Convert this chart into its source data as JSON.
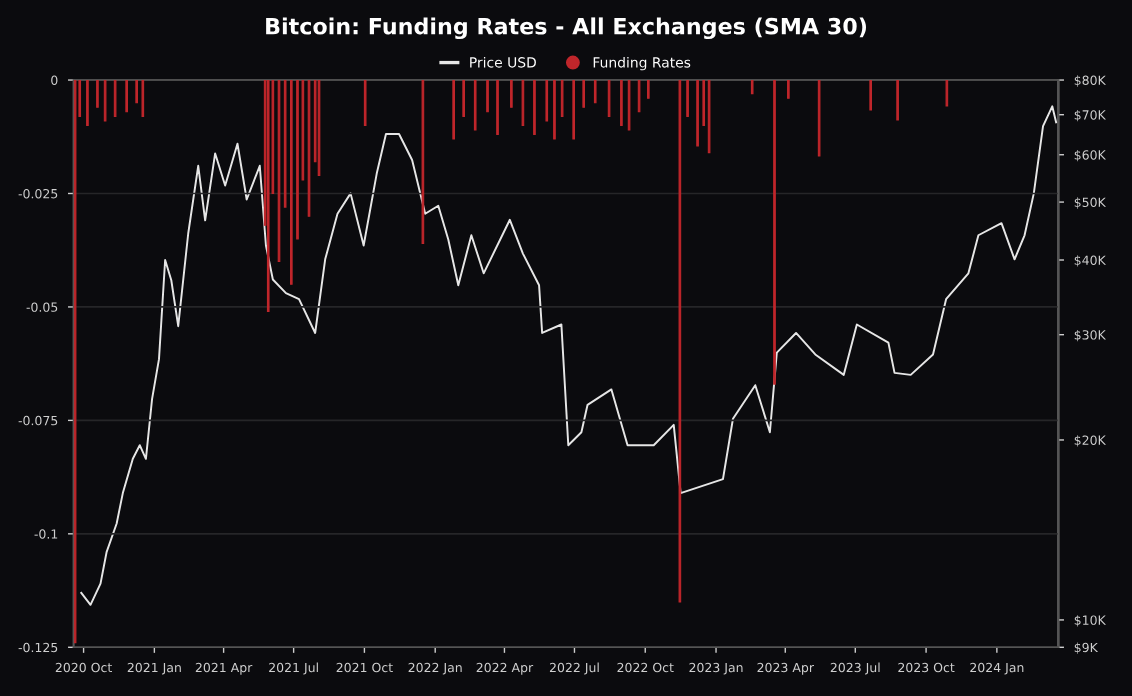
{
  "chart_data": {
    "type": "bar",
    "title": "Bitcoin: Funding Rates - All Exchanges (SMA 30)",
    "xlim": [
      "2020-09-18",
      "2024-03-21"
    ],
    "xticks": [
      {
        "value": "2020-10-01",
        "label": "2020 Oct"
      },
      {
        "value": "2021-01-01",
        "label": "2021 Jan"
      },
      {
        "value": "2021-04-01",
        "label": "2021 Apr"
      },
      {
        "value": "2021-07-01",
        "label": "2021 Jul"
      },
      {
        "value": "2021-10-01",
        "label": "2021 Oct"
      },
      {
        "value": "2022-01-01",
        "label": "2022 Jan"
      },
      {
        "value": "2022-04-01",
        "label": "2022 Apr"
      },
      {
        "value": "2022-07-01",
        "label": "2022 Jul"
      },
      {
        "value": "2022-10-01",
        "label": "2022 Oct"
      },
      {
        "value": "2023-01-01",
        "label": "2023 Jan"
      },
      {
        "value": "2023-04-01",
        "label": "2023 Apr"
      },
      {
        "value": "2023-07-01",
        "label": "2023 Jul"
      },
      {
        "value": "2023-10-01",
        "label": "2023 Oct"
      },
      {
        "value": "2024-01-01",
        "label": "2024 Jan"
      }
    ],
    "ylim": [
      -0.125,
      0
    ],
    "yticks": [
      0,
      -0.025,
      -0.05,
      -0.075,
      -0.1,
      -0.125
    ],
    "y2lim": [
      9000,
      80000
    ],
    "log": "y2",
    "y2ticks": [
      {
        "value": 9000,
        "label": "$9K"
      },
      {
        "value": 10000,
        "label": "$10K"
      },
      {
        "value": 20000,
        "label": "$20K"
      },
      {
        "value": 30000,
        "label": "$30K"
      },
      {
        "value": 40000,
        "label": "$40K"
      },
      {
        "value": 50000,
        "label": "$50K"
      },
      {
        "value": 60000,
        "label": "$60K"
      },
      {
        "value": 70000,
        "label": "$70K"
      },
      {
        "value": 80000,
        "label": "$80K"
      }
    ],
    "grid": "y",
    "legend": "top",
    "series": [
      {
        "name": "Price USD",
        "type": "line",
        "axis": "y2",
        "color": "#e6e6e6",
        "x": [
          "2020-09-28",
          "2020-10-10",
          "2020-10-23",
          "2020-10-31",
          "2020-11-13",
          "2020-11-21",
          "2020-12-04",
          "2020-12-13",
          "2020-12-21",
          "2020-12-29",
          "2021-01-07",
          "2021-01-15",
          "2021-01-23",
          "2021-02-01",
          "2021-02-14",
          "2021-02-27",
          "2021-03-08",
          "2021-03-21",
          "2021-04-03",
          "2021-04-19",
          "2021-05-01",
          "2021-05-18",
          "2021-05-26",
          "2021-06-04",
          "2021-06-21",
          "2021-07-08",
          "2021-07-29",
          "2021-08-11",
          "2021-08-27",
          "2021-09-13",
          "2021-09-30",
          "2021-10-17",
          "2021-10-29",
          "2021-11-15",
          "2021-12-02",
          "2021-12-19",
          "2022-01-05",
          "2022-01-18",
          "2022-01-31",
          "2022-02-17",
          "2022-03-05",
          "2022-04-08",
          "2022-04-25",
          "2022-05-16",
          "2022-05-20",
          "2022-06-14",
          "2022-06-23",
          "2022-07-10",
          "2022-07-18",
          "2022-08-18",
          "2022-09-08",
          "2022-10-12",
          "2022-11-07",
          "2022-11-16",
          "2023-01-10",
          "2023-01-23",
          "2023-02-21",
          "2023-03-12",
          "2023-03-21",
          "2023-04-15",
          "2023-05-10",
          "2023-06-16",
          "2023-07-03",
          "2023-08-13",
          "2023-08-21",
          "2023-09-11",
          "2023-10-10",
          "2023-10-27",
          "2023-11-25",
          "2023-12-08",
          "2024-01-07",
          "2024-01-24",
          "2024-02-06",
          "2024-02-18",
          "2024-03-01",
          "2024-03-13",
          "2024-03-18"
        ],
        "values": [
          11100,
          10600,
          11500,
          13000,
          14500,
          16300,
          18600,
          19600,
          18600,
          23400,
          27300,
          40000,
          37000,
          31000,
          44300,
          57500,
          46600,
          60300,
          53300,
          62600,
          50500,
          57500,
          42300,
          37100,
          35200,
          34400,
          30200,
          40100,
          47800,
          51700,
          42300,
          55800,
          65000,
          65000,
          58800,
          47800,
          49300,
          43300,
          36300,
          44000,
          38000,
          46700,
          41000,
          36300,
          30200,
          31200,
          19600,
          20600,
          22900,
          24300,
          19600,
          19600,
          21200,
          16300,
          17200,
          21700,
          24700,
          20600,
          28000,
          30200,
          27800,
          25700,
          31200,
          29100,
          25900,
          25700,
          27800,
          34400,
          38000,
          44000,
          46100,
          40100,
          44000,
          51700,
          67000,
          72300,
          68000
        ]
      },
      {
        "name": "Funding Rates",
        "color": "#c0262b",
        "x": [
          "2020-09-20",
          "2020-09-26",
          "2020-10-06",
          "2020-10-19",
          "2020-10-29",
          "2020-11-11",
          "2020-11-26",
          "2020-12-09",
          "2020-12-17",
          "2021-05-25",
          "2021-05-29",
          "2021-06-04",
          "2021-06-12",
          "2021-06-20",
          "2021-06-28",
          "2021-07-06",
          "2021-07-13",
          "2021-07-21",
          "2021-07-29",
          "2021-08-03",
          "2021-10-02",
          "2021-12-16",
          "2022-01-25",
          "2022-02-07",
          "2022-02-22",
          "2022-03-10",
          "2022-03-23",
          "2022-04-10",
          "2022-04-25",
          "2022-05-10",
          "2022-05-26",
          "2022-06-05",
          "2022-06-15",
          "2022-06-30",
          "2022-07-13",
          "2022-07-28",
          "2022-08-15",
          "2022-08-31",
          "2022-09-10",
          "2022-09-23",
          "2022-10-05",
          "2022-11-15",
          "2022-11-25",
          "2022-12-08",
          "2022-12-16",
          "2022-12-23",
          "2023-02-17",
          "2023-03-18",
          "2023-04-05",
          "2023-05-15",
          "2023-07-21",
          "2023-08-25",
          "2023-10-28"
        ],
        "values": [
          -0.124,
          -0.008,
          -0.01,
          -0.006,
          -0.009,
          -0.008,
          -0.007,
          -0.005,
          -0.008,
          -0.032,
          -0.051,
          -0.025,
          -0.04,
          -0.028,
          -0.045,
          -0.035,
          -0.022,
          -0.03,
          -0.018,
          -0.021,
          -0.01,
          -0.036,
          -0.013,
          -0.008,
          -0.011,
          -0.007,
          -0.012,
          -0.006,
          -0.01,
          -0.012,
          -0.009,
          -0.013,
          -0.008,
          -0.013,
          -0.006,
          -0.005,
          -0.008,
          -0.01,
          -0.011,
          -0.007,
          -0.004,
          -0.115,
          -0.008,
          -0.0145,
          -0.01,
          -0.016,
          -0.003,
          -0.067,
          -0.004,
          -0.0167,
          -0.0066,
          -0.0088,
          -0.0057
        ]
      }
    ]
  }
}
